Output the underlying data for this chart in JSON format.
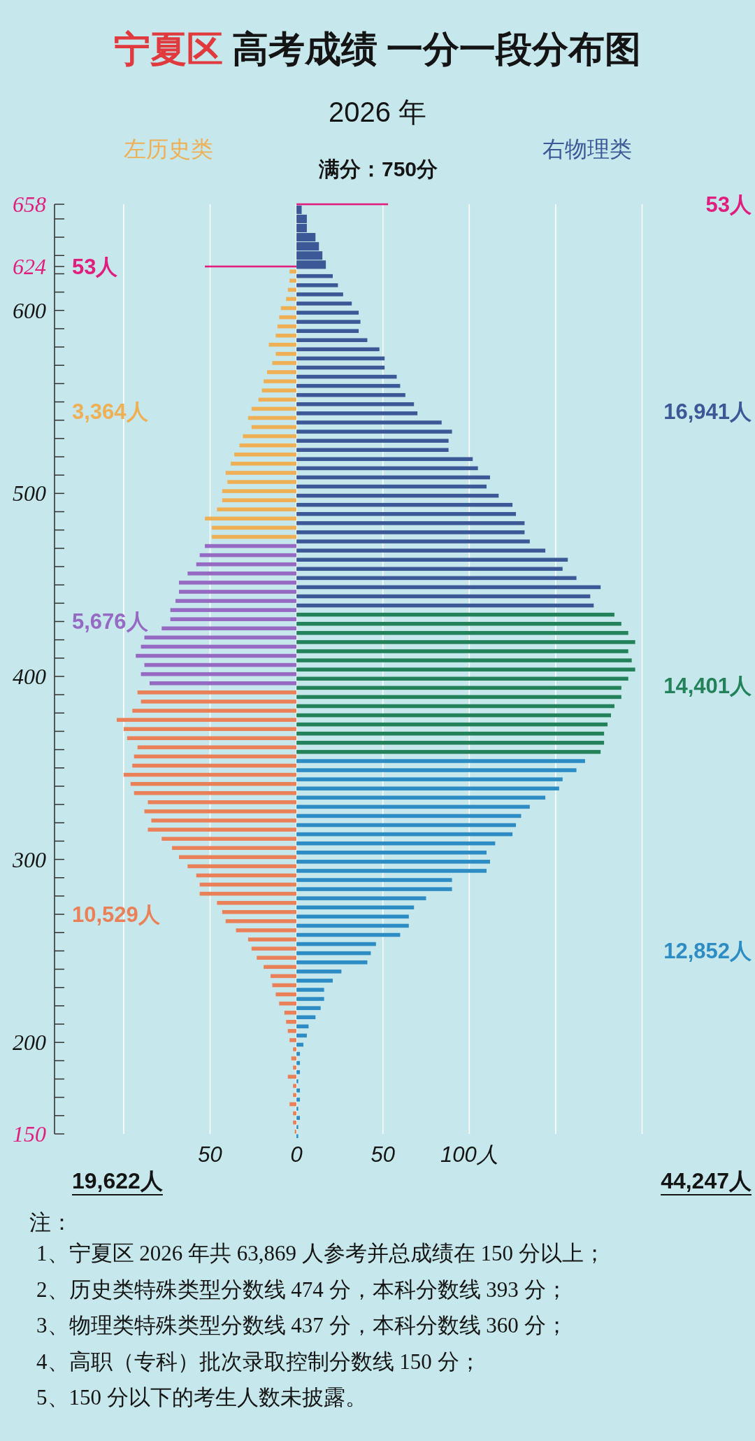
{
  "chart_data": {
    "type": "bar",
    "orientation": "horizontal",
    "title": "宁夏区 高考成绩 一分一段分布图",
    "subtitle": "2026 年",
    "annotations": [
      "左历史类",
      "右物理类",
      "满分：750分",
      "19,622人",
      "44,247人",
      "注：",
      "1、宁夏区 2026 年共 63,869 人参考并总成绩在 150 分以上；",
      "2、历史类特殊类型分数线 474 分，本科分数线 393 分；",
      "3、物理类特殊类型分数线 437 分，本科分数线 360 分；",
      "4、高职（专科）批次录取控制分数线 150 分；",
      "5、150 分以下的考生人数未披露。"
    ],
    "xlim": [
      -140,
      200
    ],
    "xticks": [
      {
        "value": -100,
        "label": null
      },
      {
        "value": -50,
        "label": "50"
      },
      0,
      50,
      {
        "value": 100,
        "label": "100人"
      },
      {
        "value": 150,
        "label": null
      },
      {
        "value": 200,
        "label": null
      }
    ],
    "ylim": [
      150,
      658
    ],
    "yticks": [
      150,
      {
        "value": 160,
        "label": null
      },
      {
        "value": 170,
        "label": null
      },
      {
        "value": 180,
        "label": null
      },
      {
        "value": 190,
        "label": null
      },
      200,
      {
        "value": 210,
        "label": null
      },
      {
        "value": 220,
        "label": null
      },
      {
        "value": 230,
        "label": null
      },
      {
        "value": 240,
        "label": null
      },
      {
        "value": 250,
        "label": null
      },
      {
        "value": 260,
        "label": null
      },
      {
        "value": 270,
        "label": null
      },
      {
        "value": 280,
        "label": null
      },
      {
        "value": 290,
        "label": null
      },
      300,
      {
        "value": 310,
        "label": null
      },
      {
        "value": 320,
        "label": null
      },
      {
        "value": 330,
        "label": null
      },
      {
        "value": 340,
        "label": null
      },
      {
        "value": 350,
        "label": null
      },
      {
        "value": 360,
        "label": null
      },
      {
        "value": 370,
        "label": null
      },
      {
        "value": 380,
        "label": null
      },
      {
        "value": 390,
        "label": null
      },
      400,
      {
        "value": 410,
        "label": null
      },
      {
        "value": 420,
        "label": null
      },
      {
        "value": 430,
        "label": null
      },
      {
        "value": 440,
        "label": null
      },
      {
        "value": 450,
        "label": null
      },
      {
        "value": 460,
        "label": null
      },
      {
        "value": 470,
        "label": null
      },
      {
        "value": 480,
        "label": null
      },
      {
        "value": 490,
        "label": null
      },
      500,
      {
        "value": 510,
        "label": null
      },
      {
        "value": 520,
        "label": null
      },
      {
        "value": 530,
        "label": null
      },
      {
        "value": 540,
        "label": null
      },
      {
        "value": 550,
        "label": null
      },
      {
        "value": 560,
        "label": null
      },
      {
        "value": 570,
        "label": null
      },
      {
        "value": 580,
        "label": null
      },
      {
        "value": 590,
        "label": null
      },
      600,
      {
        "value": 610,
        "label": null
      },
      {
        "value": 620,
        "label": null
      },
      624,
      {
        "value": 630,
        "label": null
      },
      {
        "value": 640,
        "label": null
      },
      {
        "value": 650,
        "label": null
      },
      658
    ],
    "grid": "x",
    "series": [
      {
        "name": "3,364人",
        "color": "#efaf55",
        "x": [
          475,
          480,
          485,
          490,
          495,
          500,
          505,
          510,
          515,
          520,
          525,
          530,
          535,
          540,
          545,
          550,
          555,
          560,
          565,
          570,
          575,
          580,
          585,
          590,
          595,
          600,
          605,
          610,
          615,
          620
        ],
        "values": [
          -49,
          -49,
          -53,
          -46,
          -43,
          -43,
          -40,
          -41,
          -38,
          -36,
          -33,
          -31,
          -26,
          -28,
          -26,
          -22,
          -20,
          -19,
          -17,
          -14,
          -12,
          -16,
          -12,
          -11,
          -10,
          -9,
          -6,
          -5,
          -4,
          -4
        ]
      },
      {
        "name": "5,676人",
        "color": "#966ac2",
        "x": [
          395,
          400,
          405,
          410,
          415,
          420,
          425,
          430,
          435,
          440,
          445,
          450,
          455,
          460,
          465,
          470
        ],
        "values": [
          -85,
          -90,
          -88,
          -93,
          -90,
          -88,
          -78,
          -73,
          -73,
          -70,
          -68,
          -68,
          -63,
          -58,
          -56,
          -53
        ]
      },
      {
        "name": "10,529人",
        "color": "#ea8058",
        "x": [
          150,
          155,
          160,
          165,
          170,
          175,
          180,
          185,
          190,
          195,
          200,
          205,
          210,
          215,
          220,
          225,
          230,
          235,
          240,
          245,
          250,
          255,
          260,
          265,
          270,
          275,
          280,
          285,
          290,
          295,
          300,
          305,
          310,
          315,
          320,
          325,
          330,
          335,
          340,
          345,
          350,
          355,
          360,
          365,
          370,
          375,
          380,
          385,
          390
        ],
        "values": [
          -1,
          -2,
          -2,
          -4,
          -2,
          -2,
          -5,
          -2,
          -3,
          -2,
          -4,
          -5,
          -6,
          -7,
          -10,
          -12,
          -14,
          -15,
          -19,
          -23,
          -26,
          -28,
          -35,
          -41,
          -43,
          -46,
          -56,
          -56,
          -58,
          -63,
          -68,
          -72,
          -78,
          -86,
          -84,
          -88,
          -86,
          -94,
          -96,
          -100,
          -95,
          -94,
          -92,
          -98,
          -100,
          -104,
          -95,
          -90,
          -92
        ]
      },
      {
        "name": "53人",
        "color": "#e01e7d",
        "x": [
          624
        ],
        "values": [
          -53
        ]
      },
      {
        "name": "16,941人",
        "color": "#3c5896",
        "x": [
          440,
          445,
          450,
          455,
          460,
          465,
          470,
          475,
          480,
          485,
          490,
          495,
          500,
          505,
          510,
          515,
          520,
          525,
          530,
          535,
          540,
          545,
          550,
          555,
          560,
          565,
          570,
          575,
          580,
          585,
          590,
          595,
          600,
          605,
          610,
          615,
          620,
          625,
          630,
          635,
          640,
          645,
          650,
          655
        ],
        "values": [
          172,
          170,
          176,
          162,
          154,
          157,
          144,
          135,
          132,
          132,
          127,
          125,
          117,
          110,
          112,
          105,
          102,
          88,
          88,
          90,
          84,
          70,
          68,
          63,
          60,
          58,
          51,
          51,
          48,
          41,
          36,
          37,
          36,
          32,
          27,
          24,
          21,
          17,
          15,
          13,
          11,
          6,
          6,
          3
        ]
      },
      {
        "name": "14,401人",
        "color": "#23825a",
        "x": [
          360,
          365,
          370,
          375,
          380,
          385,
          390,
          395,
          400,
          405,
          410,
          415,
          420,
          425,
          430,
          435
        ],
        "values": [
          176,
          178,
          178,
          180,
          182,
          184,
          188,
          188,
          192,
          196,
          194,
          192,
          196,
          192,
          188,
          184
        ]
      },
      {
        "name": "12,852人",
        "color": "#2d8cc3",
        "x": [
          150,
          155,
          160,
          165,
          170,
          175,
          180,
          185,
          190,
          195,
          200,
          205,
          210,
          215,
          220,
          225,
          230,
          235,
          240,
          245,
          250,
          255,
          260,
          265,
          270,
          275,
          280,
          285,
          290,
          295,
          300,
          305,
          310,
          315,
          320,
          325,
          330,
          335,
          340,
          345,
          350,
          355
        ],
        "values": [
          1,
          1,
          2,
          1,
          2,
          2,
          1,
          2,
          2,
          2,
          4,
          6,
          7,
          11,
          14,
          16,
          16,
          21,
          26,
          41,
          43,
          46,
          60,
          65,
          65,
          68,
          75,
          90,
          90,
          110,
          112,
          110,
          115,
          125,
          127,
          130,
          135,
          144,
          152,
          154,
          162,
          167
        ]
      },
      {
        "name": "53人",
        "color": "#e01e7d",
        "x": [
          658
        ],
        "values": [
          53
        ]
      }
    ]
  }
}
